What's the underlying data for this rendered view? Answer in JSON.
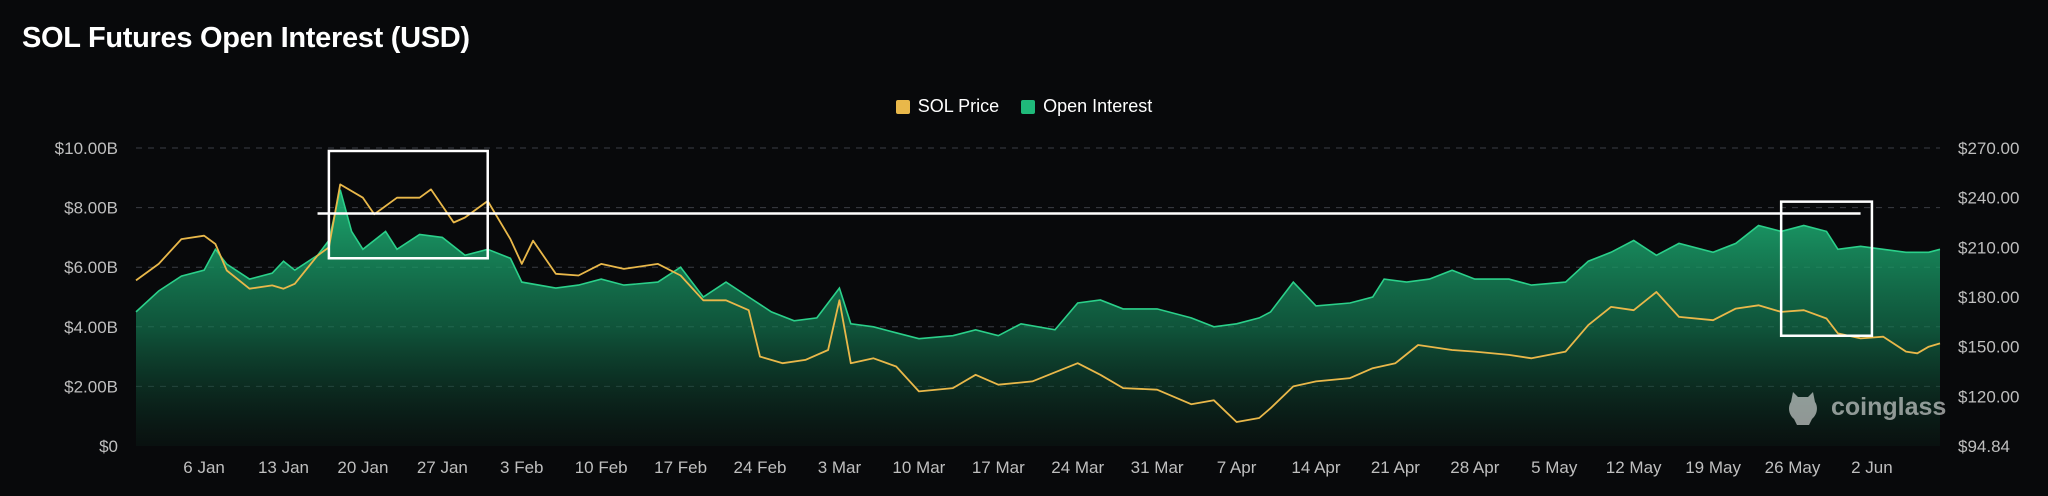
{
  "title": "SOL Futures Open Interest (USD)",
  "watermark": "coinglass",
  "colors": {
    "background": "#08090b",
    "price": "#e9b84a",
    "open_interest": "#1fb97a",
    "grid": "#3a3d44",
    "annotation": "#ffffff"
  },
  "chart_data": {
    "type": "area",
    "title": "SOL Futures Open Interest (USD)",
    "x_ticks": [
      "6 Jan",
      "13 Jan",
      "20 Jan",
      "27 Jan",
      "3 Feb",
      "10 Feb",
      "17 Feb",
      "24 Feb",
      "3 Mar",
      "10 Mar",
      "17 Mar",
      "24 Mar",
      "31 Mar",
      "7 Apr",
      "14 Apr",
      "21 Apr",
      "28 Apr",
      "5 May",
      "12 May",
      "19 May",
      "26 May",
      "2 Jun"
    ],
    "y_left": {
      "ticks": [
        "$0",
        "$2.00B",
        "$4.00B",
        "$6.00B",
        "$8.00B",
        "$10.00B"
      ],
      "range": [
        0,
        10
      ]
    },
    "y_right": {
      "ticks": [
        "$94.84",
        "$120.00",
        "$150.00",
        "$180.00",
        "$210.00",
        "$240.00",
        "$270.00"
      ],
      "values": [
        94.84,
        120,
        150,
        180,
        210,
        240,
        270
      ],
      "range": [
        94.84,
        270
      ]
    },
    "legend": [
      "SOL Price",
      "Open Interest"
    ],
    "series": [
      {
        "name": "Open Interest",
        "unit": "USD billions",
        "axis": "left",
        "points": [
          [
            "2024-12-31",
            4.5
          ],
          [
            "2025-01-02",
            5.2
          ],
          [
            "2025-01-04",
            5.7
          ],
          [
            "2025-01-06",
            5.9
          ],
          [
            "2025-01-07",
            6.6
          ],
          [
            "2025-01-08",
            6.1
          ],
          [
            "2025-01-10",
            5.6
          ],
          [
            "2025-01-12",
            5.8
          ],
          [
            "2025-01-13",
            6.2
          ],
          [
            "2025-01-14",
            5.9
          ],
          [
            "2025-01-16",
            6.4
          ],
          [
            "2025-01-17",
            6.9
          ],
          [
            "2025-01-18",
            8.6
          ],
          [
            "2025-01-19",
            7.2
          ],
          [
            "2025-01-20",
            6.6
          ],
          [
            "2025-01-22",
            7.2
          ],
          [
            "2025-01-23",
            6.6
          ],
          [
            "2025-01-25",
            7.1
          ],
          [
            "2025-01-27",
            7.0
          ],
          [
            "2025-01-29",
            6.4
          ],
          [
            "2025-01-31",
            6.6
          ],
          [
            "2025-02-02",
            6.3
          ],
          [
            "2025-02-03",
            5.5
          ],
          [
            "2025-02-06",
            5.3
          ],
          [
            "2025-02-08",
            5.4
          ],
          [
            "2025-02-10",
            5.6
          ],
          [
            "2025-02-12",
            5.4
          ],
          [
            "2025-02-15",
            5.5
          ],
          [
            "2025-02-17",
            6.0
          ],
          [
            "2025-02-19",
            5.0
          ],
          [
            "2025-02-21",
            5.5
          ],
          [
            "2025-02-23",
            5.0
          ],
          [
            "2025-02-25",
            4.5
          ],
          [
            "2025-02-27",
            4.2
          ],
          [
            "2025-03-01",
            4.3
          ],
          [
            "2025-03-03",
            5.3
          ],
          [
            "2025-03-04",
            4.1
          ],
          [
            "2025-03-06",
            4.0
          ],
          [
            "2025-03-08",
            3.8
          ],
          [
            "2025-03-10",
            3.6
          ],
          [
            "2025-03-13",
            3.7
          ],
          [
            "2025-03-15",
            3.9
          ],
          [
            "2025-03-17",
            3.7
          ],
          [
            "2025-03-19",
            4.1
          ],
          [
            "2025-03-22",
            3.9
          ],
          [
            "2025-03-24",
            4.8
          ],
          [
            "2025-03-26",
            4.9
          ],
          [
            "2025-03-28",
            4.6
          ],
          [
            "2025-03-31",
            4.6
          ],
          [
            "2025-04-03",
            4.3
          ],
          [
            "2025-04-05",
            4.0
          ],
          [
            "2025-04-07",
            4.1
          ],
          [
            "2025-04-09",
            4.3
          ],
          [
            "2025-04-10",
            4.5
          ],
          [
            "2025-04-12",
            5.5
          ],
          [
            "2025-04-14",
            4.7
          ],
          [
            "2025-04-17",
            4.8
          ],
          [
            "2025-04-19",
            5.0
          ],
          [
            "2025-04-20",
            5.6
          ],
          [
            "2025-04-22",
            5.5
          ],
          [
            "2025-04-24",
            5.6
          ],
          [
            "2025-04-26",
            5.9
          ],
          [
            "2025-04-28",
            5.6
          ],
          [
            "2025-05-01",
            5.6
          ],
          [
            "2025-05-03",
            5.4
          ],
          [
            "2025-05-06",
            5.5
          ],
          [
            "2025-05-08",
            6.2
          ],
          [
            "2025-05-10",
            6.5
          ],
          [
            "2025-05-12",
            6.9
          ],
          [
            "2025-05-14",
            6.4
          ],
          [
            "2025-05-16",
            6.8
          ],
          [
            "2025-05-19",
            6.5
          ],
          [
            "2025-05-21",
            6.8
          ],
          [
            "2025-05-23",
            7.4
          ],
          [
            "2025-05-25",
            7.2
          ],
          [
            "2025-05-27",
            7.4
          ],
          [
            "2025-05-29",
            7.2
          ],
          [
            "2025-05-30",
            6.6
          ],
          [
            "2025-06-01",
            6.7
          ],
          [
            "2025-06-03",
            6.6
          ],
          [
            "2025-06-05",
            6.5
          ],
          [
            "2025-06-07",
            6.5
          ],
          [
            "2025-06-08",
            6.6
          ]
        ]
      },
      {
        "name": "SOL Price",
        "unit": "USD",
        "axis": "right",
        "points": [
          [
            "2024-12-31",
            190
          ],
          [
            "2025-01-02",
            200
          ],
          [
            "2025-01-04",
            215
          ],
          [
            "2025-01-06",
            217
          ],
          [
            "2025-01-07",
            212
          ],
          [
            "2025-01-08",
            196
          ],
          [
            "2025-01-10",
            185
          ],
          [
            "2025-01-12",
            187
          ],
          [
            "2025-01-13",
            185
          ],
          [
            "2025-01-14",
            188
          ],
          [
            "2025-01-16",
            205
          ],
          [
            "2025-01-17",
            210
          ],
          [
            "2025-01-18",
            248
          ],
          [
            "2025-01-20",
            240
          ],
          [
            "2025-01-21",
            230
          ],
          [
            "2025-01-23",
            240
          ],
          [
            "2025-01-25",
            240
          ],
          [
            "2025-01-26",
            245
          ],
          [
            "2025-01-28",
            225
          ],
          [
            "2025-01-29",
            228
          ],
          [
            "2025-01-31",
            238
          ],
          [
            "2025-02-02",
            215
          ],
          [
            "2025-02-03",
            200
          ],
          [
            "2025-02-04",
            214
          ],
          [
            "2025-02-06",
            194
          ],
          [
            "2025-02-08",
            193
          ],
          [
            "2025-02-10",
            200
          ],
          [
            "2025-02-12",
            197
          ],
          [
            "2025-02-15",
            200
          ],
          [
            "2025-02-17",
            193
          ],
          [
            "2025-02-19",
            178
          ],
          [
            "2025-02-21",
            178
          ],
          [
            "2025-02-23",
            172
          ],
          [
            "2025-02-24",
            144
          ],
          [
            "2025-02-26",
            140
          ],
          [
            "2025-02-28",
            142
          ],
          [
            "2025-03-02",
            148
          ],
          [
            "2025-03-03",
            178
          ],
          [
            "2025-03-04",
            140
          ],
          [
            "2025-03-06",
            143
          ],
          [
            "2025-03-08",
            138
          ],
          [
            "2025-03-10",
            123
          ],
          [
            "2025-03-13",
            125
          ],
          [
            "2025-03-15",
            133
          ],
          [
            "2025-03-17",
            127
          ],
          [
            "2025-03-20",
            129
          ],
          [
            "2025-03-24",
            140
          ],
          [
            "2025-03-26",
            133
          ],
          [
            "2025-03-28",
            125
          ],
          [
            "2025-03-31",
            124
          ],
          [
            "2025-04-03",
            116
          ],
          [
            "2025-04-05",
            118
          ],
          [
            "2025-04-07",
            107
          ],
          [
            "2025-04-09",
            109
          ],
          [
            "2025-04-10",
            114
          ],
          [
            "2025-04-12",
            126
          ],
          [
            "2025-04-14",
            129
          ],
          [
            "2025-04-17",
            131
          ],
          [
            "2025-04-19",
            137
          ],
          [
            "2025-04-21",
            140
          ],
          [
            "2025-04-23",
            151
          ],
          [
            "2025-04-26",
            148
          ],
          [
            "2025-04-28",
            147
          ],
          [
            "2025-05-01",
            145
          ],
          [
            "2025-05-03",
            143
          ],
          [
            "2025-05-06",
            147
          ],
          [
            "2025-05-08",
            163
          ],
          [
            "2025-05-10",
            174
          ],
          [
            "2025-05-12",
            172
          ],
          [
            "2025-05-14",
            183
          ],
          [
            "2025-05-16",
            168
          ],
          [
            "2025-05-19",
            166
          ],
          [
            "2025-05-21",
            173
          ],
          [
            "2025-05-23",
            175
          ],
          [
            "2025-05-25",
            171
          ],
          [
            "2025-05-27",
            172
          ],
          [
            "2025-05-29",
            167
          ],
          [
            "2025-05-30",
            158
          ],
          [
            "2025-06-01",
            155
          ],
          [
            "2025-06-03",
            156
          ],
          [
            "2025-06-05",
            147
          ],
          [
            "2025-06-06",
            146
          ],
          [
            "2025-06-07",
            150
          ],
          [
            "2025-06-08",
            152
          ]
        ]
      }
    ],
    "annotations": [
      {
        "type": "horizontal_line",
        "value_usd_billions": 7.8,
        "from": "2025-01-16",
        "to": "2025-06-01"
      },
      {
        "type": "box",
        "from": "2025-01-17",
        "to": "2025-01-31",
        "y_range_usd_billions": [
          6.3,
          9.9
        ]
      },
      {
        "type": "box",
        "from": "2025-05-25",
        "to": "2025-06-02",
        "y_range_usd_billions": [
          3.7,
          8.2
        ]
      }
    ]
  }
}
